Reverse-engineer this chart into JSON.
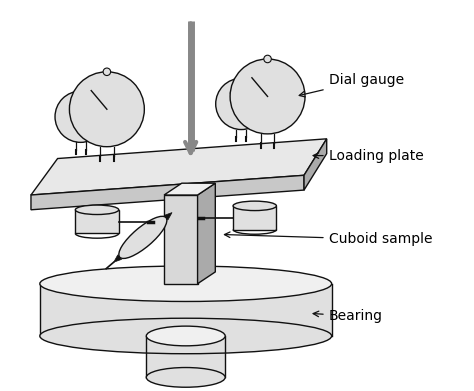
{
  "bg_color": "#ffffff",
  "line_color": "#111111",
  "gray_light": "#e0e0e0",
  "gray_mid": "#c8c8c8",
  "gray_dark": "#aaaaaa",
  "gray_side": "#b0b0b0",
  "arrow_gray": "#888888",
  "labels": {
    "dial_gauge": "Dial gauge",
    "loading_plate": "Loading plate",
    "cuboid_sample": "Cuboid sample",
    "bearing": "Bearing"
  },
  "label_fontsize": 10,
  "figsize": [
    4.74,
    3.91
  ],
  "dpi": 100
}
